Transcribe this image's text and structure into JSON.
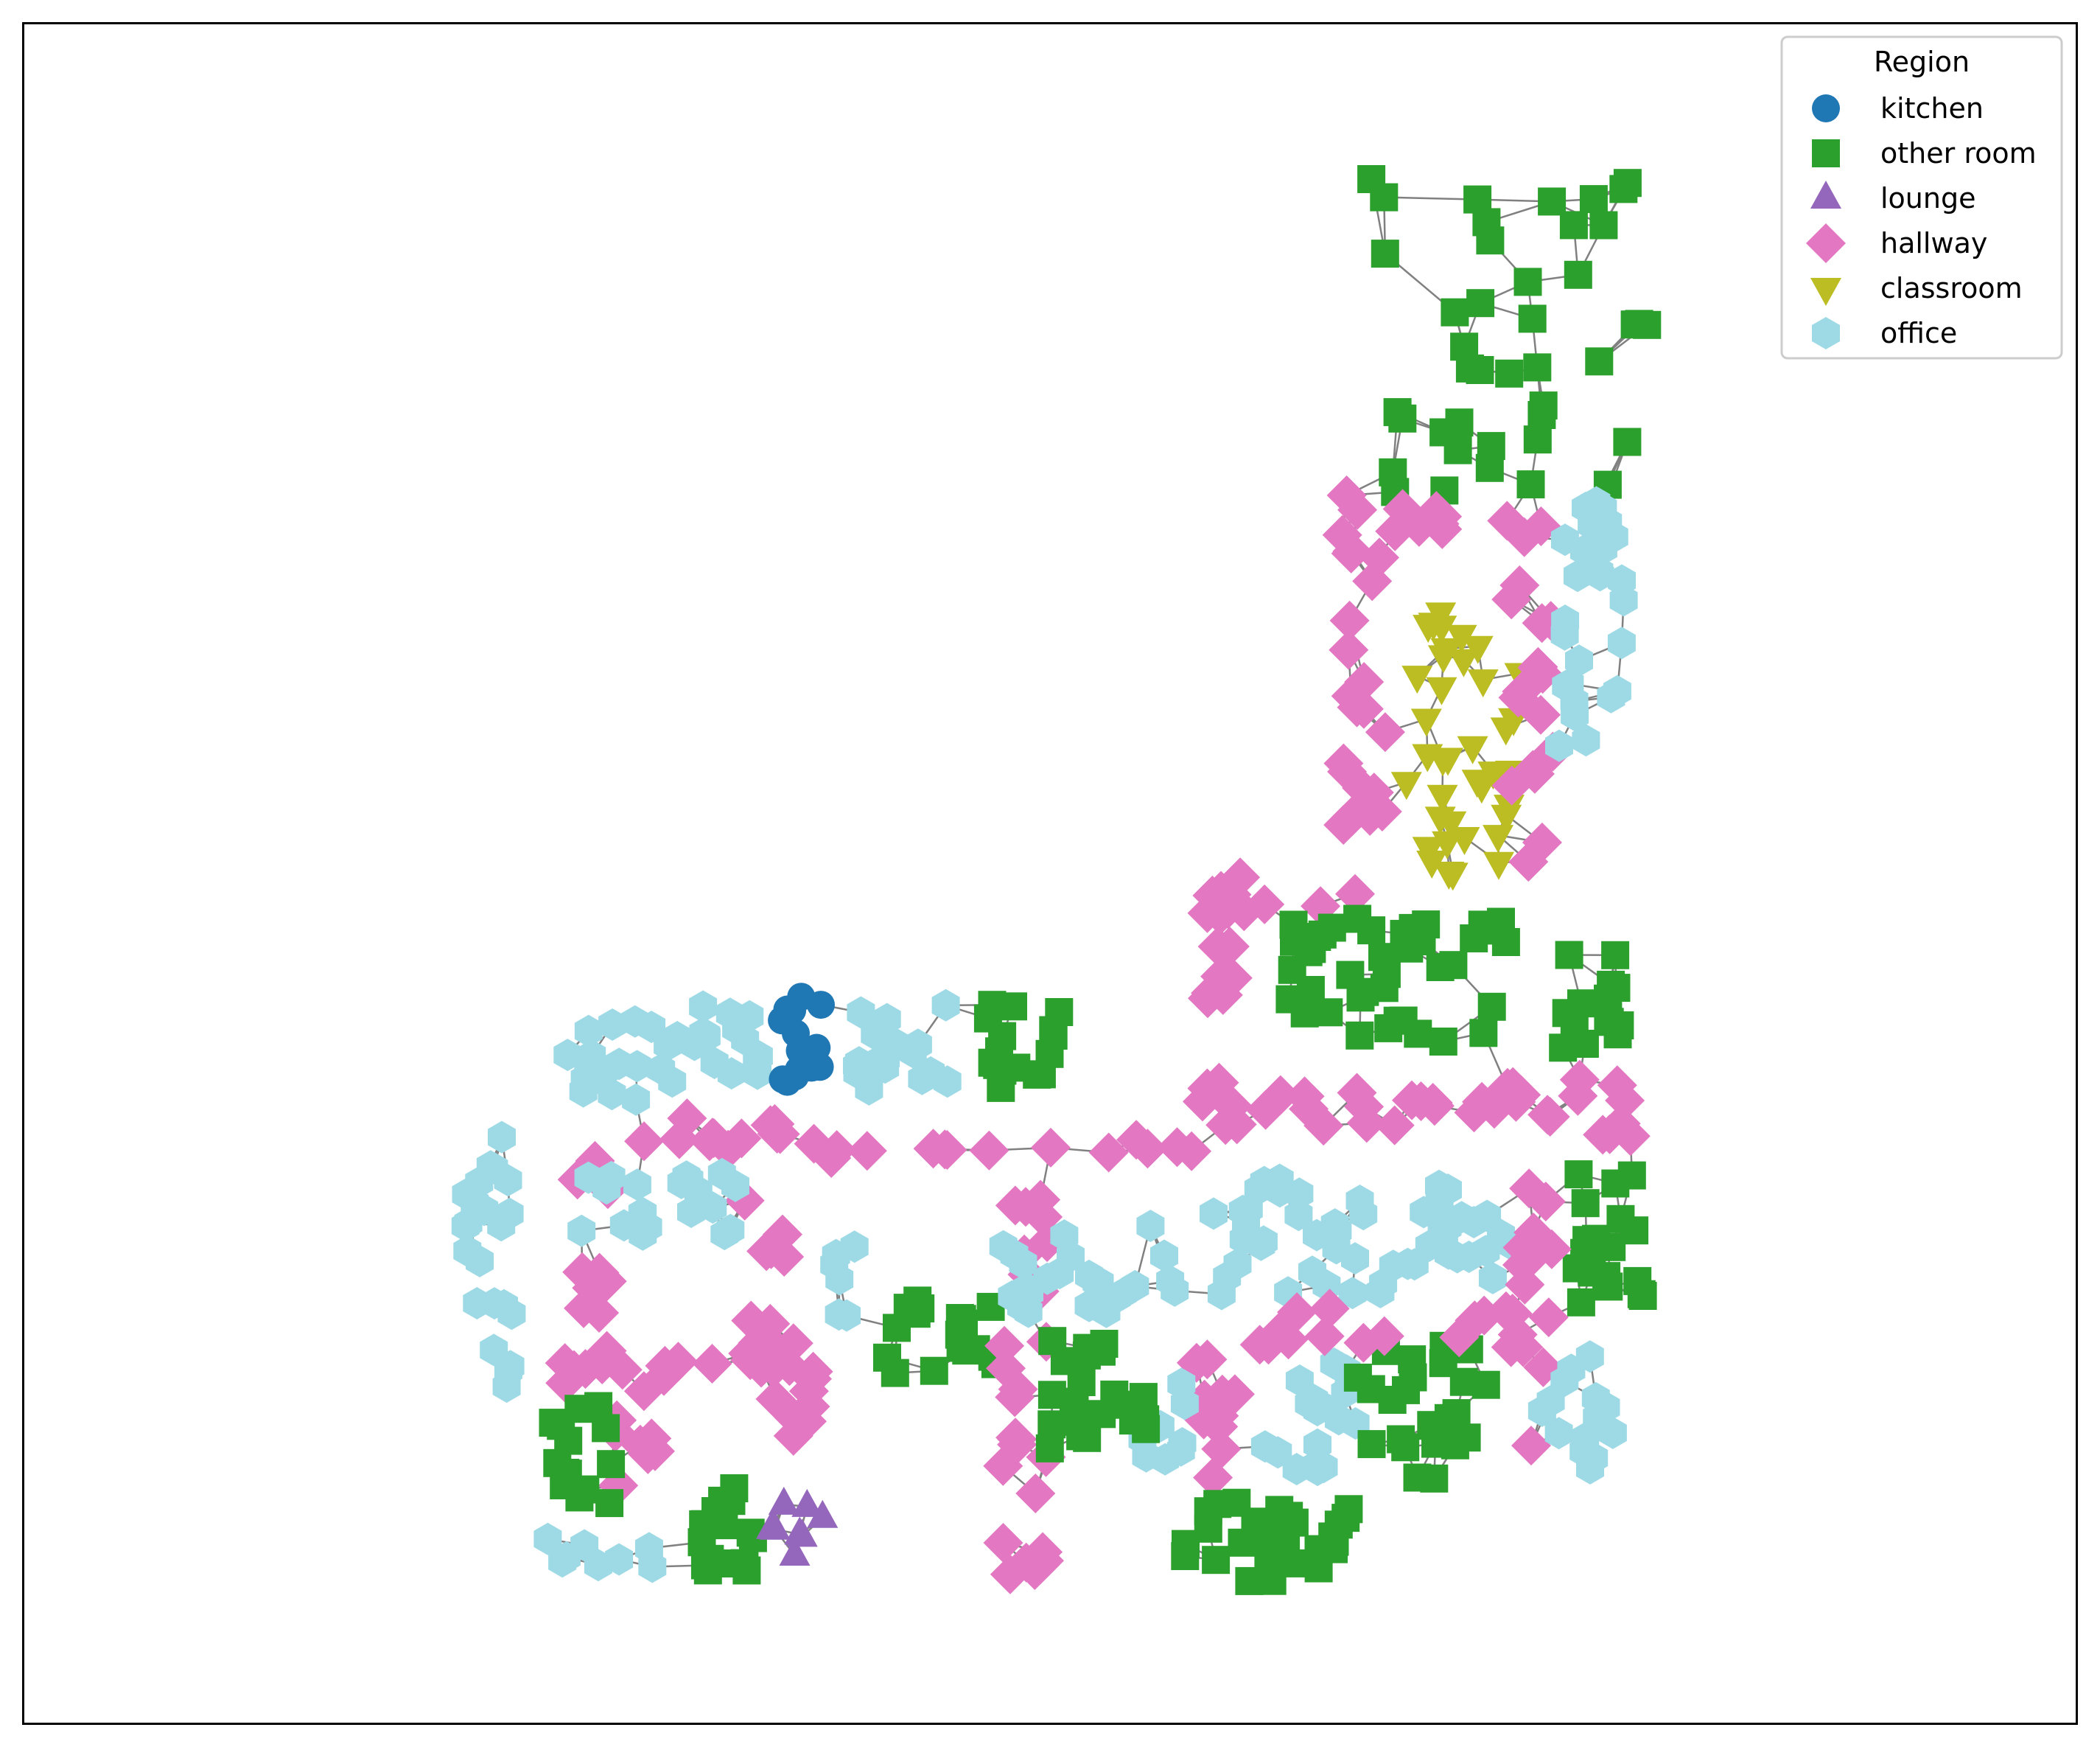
{
  "legend": {
    "title": "Region",
    "entries": [
      {
        "label": "kitchen",
        "color": "#1f77b4",
        "marker": "circle"
      },
      {
        "label": "other room",
        "color": "#2ca02c",
        "marker": "square"
      },
      {
        "label": "lounge",
        "color": "#9467bd",
        "marker": "triangle-up"
      },
      {
        "label": "hallway",
        "color": "#e377c2",
        "marker": "diamond"
      },
      {
        "label": "classroom",
        "color": "#bcbd22",
        "marker": "triangle-down"
      },
      {
        "label": "office",
        "color": "#9edae5",
        "marker": "hexagon"
      }
    ]
  },
  "edge_color": "#808080"
}
